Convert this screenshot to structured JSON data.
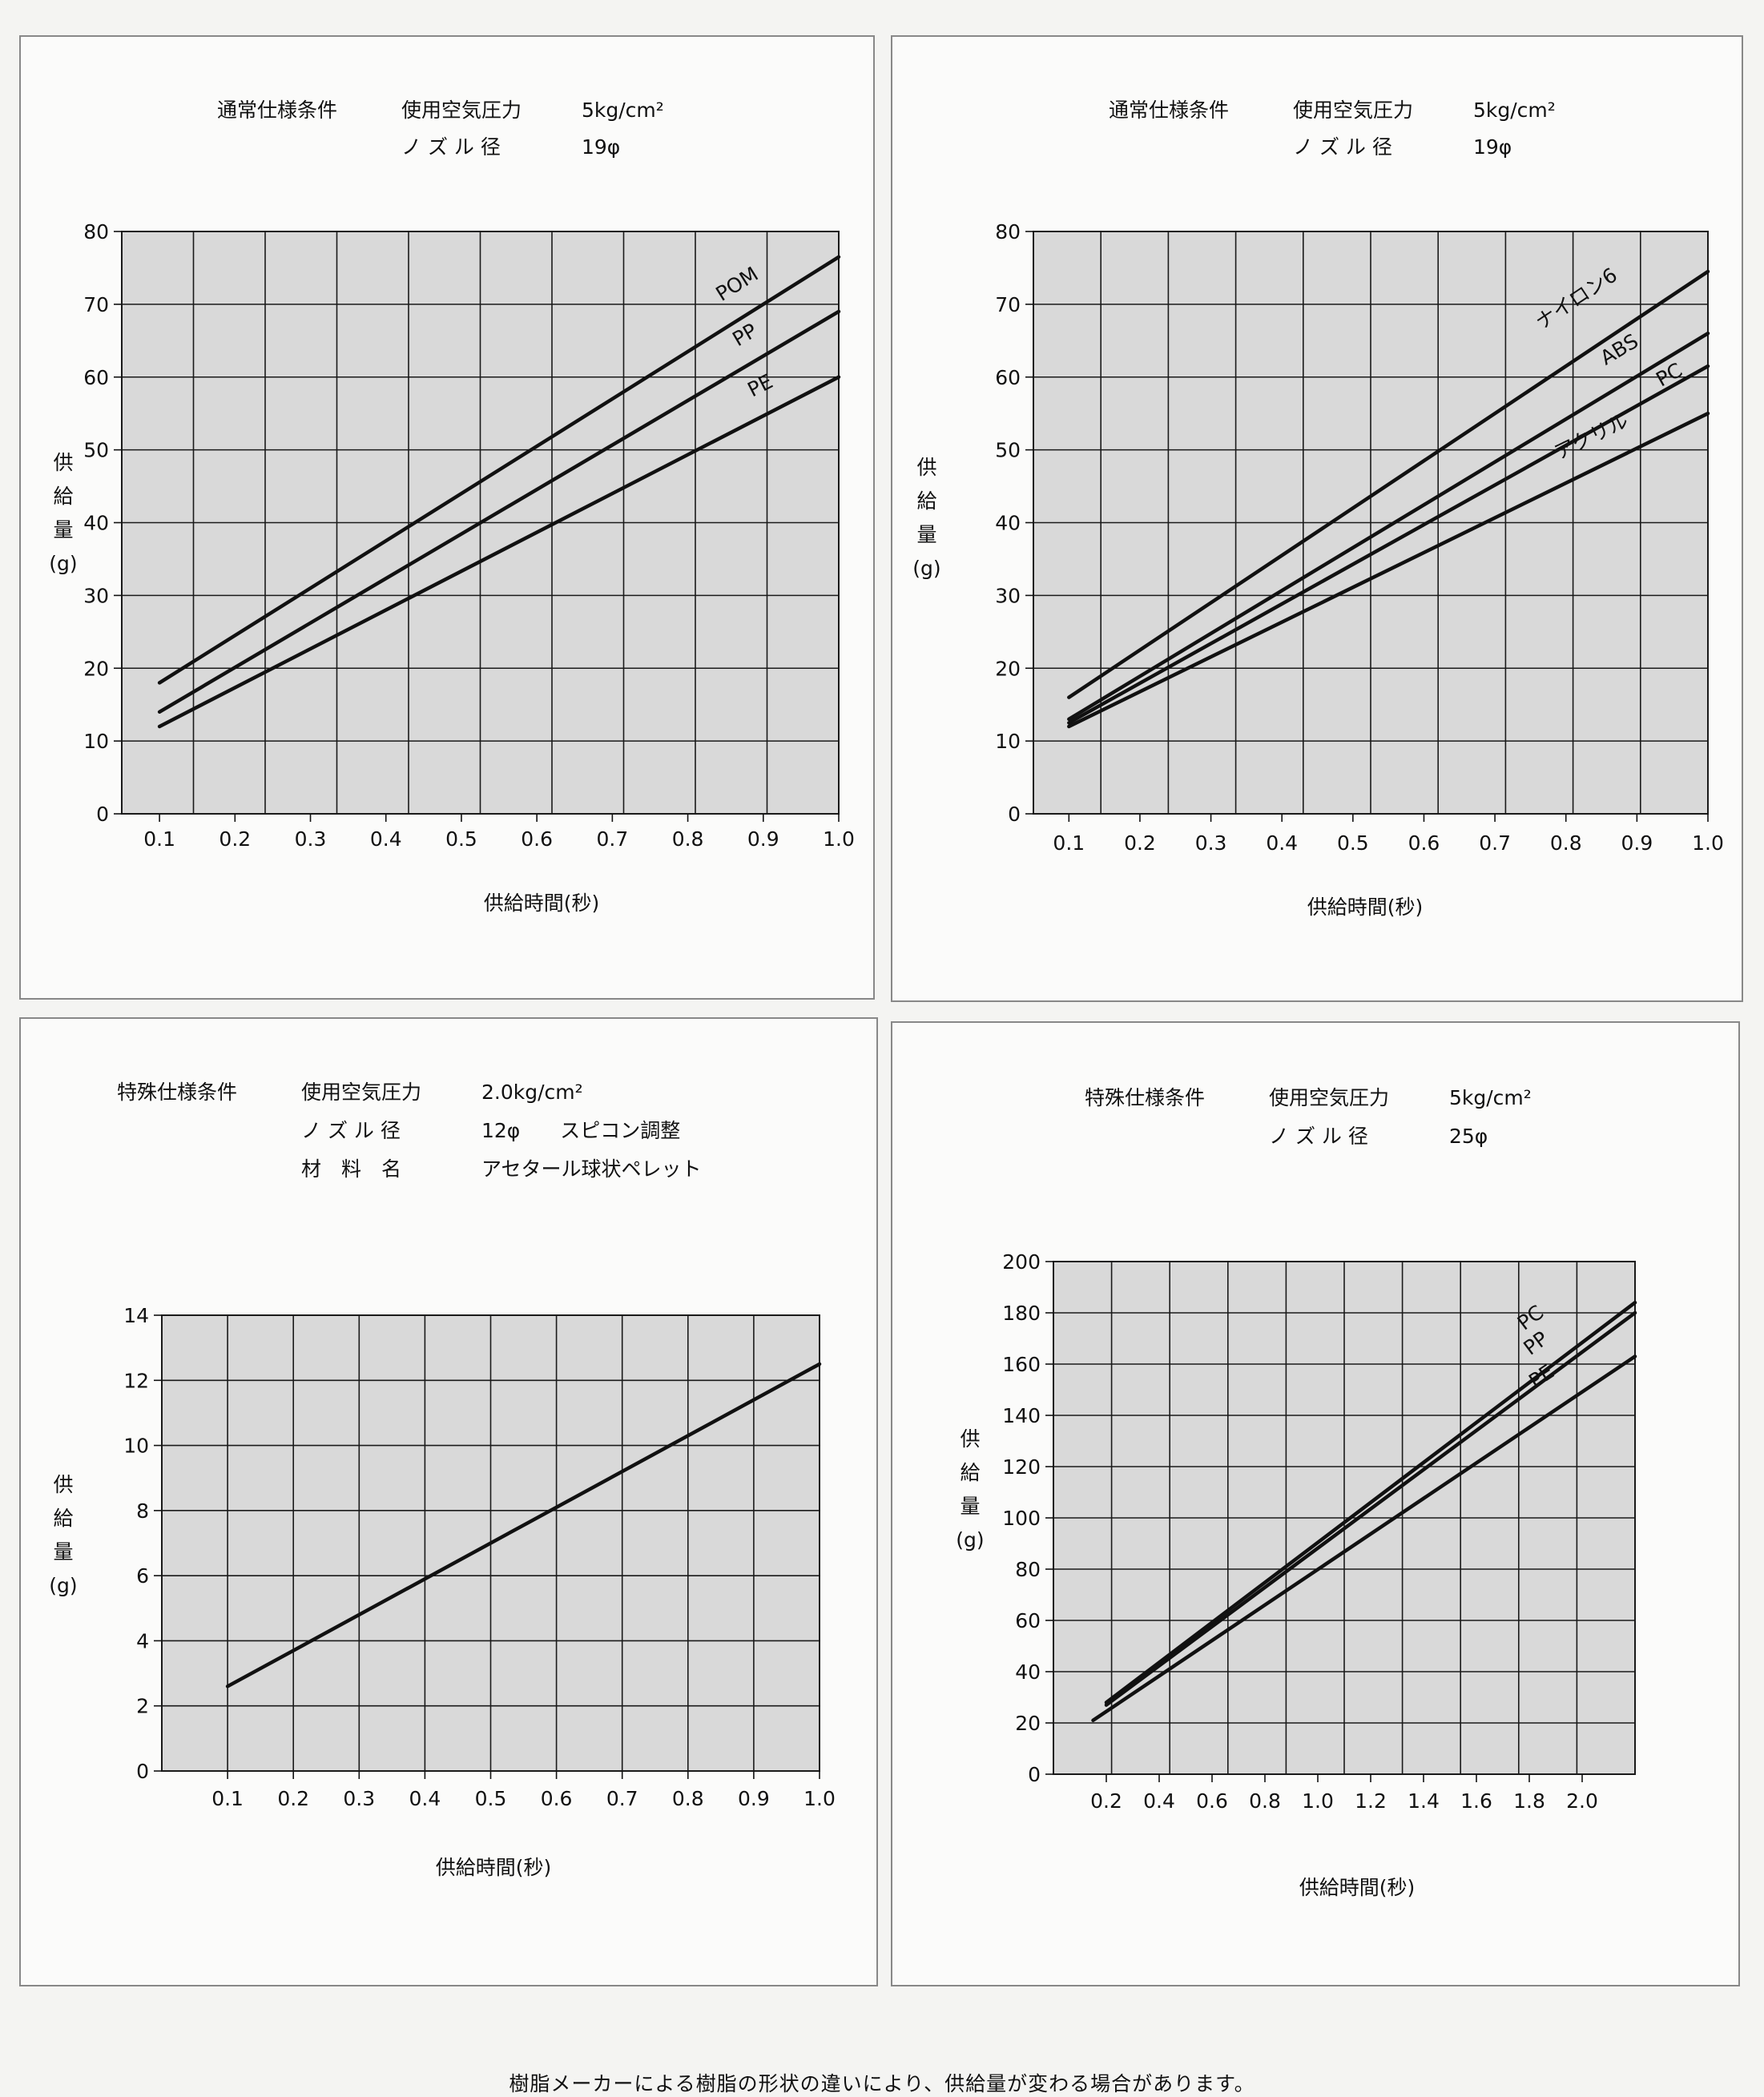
{
  "footer": "樹脂メーカーによる樹脂の形状の違いにより、供給量が変わる場合があります。",
  "colors": {
    "plot_bg": "#d9d9d9",
    "line": "#111111",
    "grid": "#1a1a1a",
    "panel_bg": "#fbfbfa"
  },
  "chart_data": [
    {
      "type": "line",
      "header": [
        [
          "通常仕様条件",
          "使用空気圧力",
          "5kg/cm²"
        ],
        [
          "",
          "ノ ズ ル 径",
          "19φ"
        ]
      ],
      "xlabel": "供給時間(秒)",
      "ylabel": [
        "供",
        "給",
        "量",
        "(g)"
      ],
      "xlim": [
        0.05,
        1.0
      ],
      "ylim": [
        0,
        80
      ],
      "x_ticks": [
        0.1,
        0.2,
        0.3,
        0.4,
        0.5,
        0.6,
        0.7,
        0.8,
        0.9,
        1.0
      ],
      "x_tick_labels": [
        "0.1",
        "0.2",
        "0.3",
        "0.4",
        "0.5",
        "0.6",
        "0.7",
        "0.8",
        "0.9",
        "1.0"
      ],
      "y_ticks": [
        0,
        10,
        20,
        30,
        40,
        50,
        60,
        70,
        80
      ],
      "y_tick_labels": [
        "0",
        "10",
        "20",
        "30",
        "40",
        "50",
        "60",
        "70",
        "80"
      ],
      "grid": true,
      "series": [
        {
          "name": "POM",
          "x": [
            0.1,
            1.0
          ],
          "y": [
            18,
            76.5
          ],
          "label_at": [
            0.87,
            72
          ]
        },
        {
          "name": "PP",
          "x": [
            0.1,
            1.0
          ],
          "y": [
            14,
            69
          ],
          "label_at": [
            0.88,
            65
          ]
        },
        {
          "name": "PE",
          "x": [
            0.1,
            1.0
          ],
          "y": [
            12,
            60
          ],
          "label_at": [
            0.9,
            58
          ]
        }
      ]
    },
    {
      "type": "line",
      "header": [
        [
          "通常仕様条件",
          "使用空気圧力",
          "5kg/cm²"
        ],
        [
          "",
          "ノ ズ ル 径",
          "19φ"
        ]
      ],
      "xlabel": "供給時間(秒)",
      "ylabel": [
        "供",
        "給",
        "量",
        "(g)"
      ],
      "xlim": [
        0.05,
        1.0
      ],
      "ylim": [
        0,
        80
      ],
      "x_ticks": [
        0.1,
        0.2,
        0.3,
        0.4,
        0.5,
        0.6,
        0.7,
        0.8,
        0.9,
        1.0
      ],
      "x_tick_labels": [
        "0.1",
        "0.2",
        "0.3",
        "0.4",
        "0.5",
        "0.6",
        "0.7",
        "0.8",
        "0.9",
        "1.0"
      ],
      "y_ticks": [
        0,
        10,
        20,
        30,
        40,
        50,
        60,
        70,
        80
      ],
      "y_tick_labels": [
        "0",
        "10",
        "20",
        "30",
        "40",
        "50",
        "60",
        "70",
        "80"
      ],
      "grid": true,
      "series": [
        {
          "name": "ナイロン6",
          "x": [
            0.1,
            1.0
          ],
          "y": [
            16,
            74.5
          ],
          "label_at": [
            0.82,
            70
          ]
        },
        {
          "name": "ABS",
          "x": [
            0.1,
            1.0
          ],
          "y": [
            13,
            66
          ],
          "label_at": [
            0.88,
            63
          ]
        },
        {
          "name": "PC",
          "x": [
            0.1,
            1.0
          ],
          "y": [
            12.5,
            61.5
          ],
          "label_at": [
            0.95,
            59.5
          ]
        },
        {
          "name": "アクリル",
          "x": [
            0.1,
            1.0
          ],
          "y": [
            12,
            55
          ],
          "label_at": [
            0.84,
            51
          ]
        }
      ]
    },
    {
      "type": "line",
      "header": [
        [
          "特殊仕様条件",
          "使用空気圧力",
          "2.0kg/cm²"
        ],
        [
          "",
          "ノ ズ ル 径",
          "12φ　　スピコン調整"
        ],
        [
          "",
          "材　料　名",
          "アセタール球状ペレット"
        ]
      ],
      "xlabel": "供給時間(秒)",
      "ylabel": [
        "供",
        "給",
        "量",
        "(g)"
      ],
      "xlim": [
        0.0,
        1.0
      ],
      "ylim": [
        0,
        14
      ],
      "x_ticks": [
        0.1,
        0.2,
        0.3,
        0.4,
        0.5,
        0.6,
        0.7,
        0.8,
        0.9,
        1.0
      ],
      "x_tick_labels": [
        "0.1",
        "0.2",
        "0.3",
        "0.4",
        "0.5",
        "0.6",
        "0.7",
        "0.8",
        "0.9",
        "1.0"
      ],
      "y_ticks": [
        0,
        2,
        4,
        6,
        8,
        10,
        12,
        14
      ],
      "y_tick_labels": [
        "0",
        "2",
        "4",
        "6",
        "8",
        "10",
        "12",
        "14"
      ],
      "grid": true,
      "series": [
        {
          "x": [
            0.1,
            1.0
          ],
          "y": [
            2.6,
            12.5
          ]
        }
      ]
    },
    {
      "type": "line",
      "header": [
        [
          "特殊仕様条件",
          "使用空気圧力",
          "5kg/cm²"
        ],
        [
          "",
          "ノ ズ ル 径",
          "25φ"
        ]
      ],
      "xlabel": "供給時間(秒)",
      "ylabel": [
        "供",
        "給",
        "量",
        "(g)"
      ],
      "xlim": [
        0.0,
        2.2
      ],
      "ylim": [
        0,
        200
      ],
      "x_ticks": [
        0.2,
        0.4,
        0.6,
        0.8,
        1.0,
        1.2,
        1.4,
        1.6,
        1.8,
        2.0
      ],
      "x_tick_labels": [
        "0.2",
        "0.4",
        "0.6",
        "0.8",
        "1.0",
        "1.2",
        "1.4",
        "1.6",
        "1.8",
        "2.0"
      ],
      "y_ticks": [
        0,
        20,
        40,
        60,
        80,
        100,
        120,
        140,
        160,
        180,
        200
      ],
      "y_tick_labels": [
        "0",
        "20",
        "40",
        "60",
        "80",
        "100",
        "120",
        "140",
        "160",
        "180",
        "200"
      ],
      "grid": true,
      "series": [
        {
          "name": "PC",
          "x": [
            0.2,
            2.2
          ],
          "y": [
            28,
            184
          ],
          "label_at": [
            1.82,
            176
          ]
        },
        {
          "name": "PP",
          "x": [
            0.2,
            2.2
          ],
          "y": [
            27,
            180
          ],
          "label_at": [
            1.84,
            166
          ]
        },
        {
          "name": "PE",
          "x": [
            0.15,
            2.2
          ],
          "y": [
            21,
            163
          ],
          "label_at": [
            1.86,
            153
          ]
        }
      ]
    }
  ]
}
